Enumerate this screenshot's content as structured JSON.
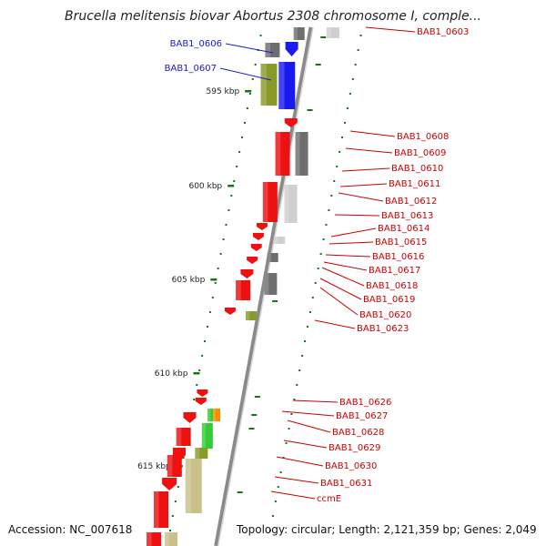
{
  "title": "Brucella melitensis biovar Abortus 2308 chromosome I, comple...",
  "footer": {
    "accession": "Accession: NC_007618",
    "info": "Topology: circular; Length: 2,121,359 bp; Genes: 2,049"
  },
  "colors": {
    "cds_red": "#ee1111",
    "cds_blue": "#1a1aee",
    "olive": "#8a9a2a",
    "khaki": "#c9c08a",
    "grey_dark": "#6e6e6e",
    "grey_light": "#cfcfcf",
    "green": "#33cc33",
    "orange": "#ff8c00",
    "label_red": "#cc0000",
    "label_blue": "#1a1acc",
    "tick_green": "#117711"
  },
  "scale_ticks": [
    "595 kbp",
    "600 kbp",
    "605 kbp",
    "610 kbp",
    "615 kbp"
  ],
  "gene_labels": [
    {
      "text": "BAB1_0603",
      "color": "red"
    },
    {
      "text": "BAB1_0606",
      "color": "blue"
    },
    {
      "text": "BAB1_0607",
      "color": "blue"
    },
    {
      "text": "BAB1_0608",
      "color": "red"
    },
    {
      "text": "BAB1_0609",
      "color": "red"
    },
    {
      "text": "BAB1_0610",
      "color": "red"
    },
    {
      "text": "BAB1_0611",
      "color": "red"
    },
    {
      "text": "BAB1_0612",
      "color": "red"
    },
    {
      "text": "BAB1_0613",
      "color": "red"
    },
    {
      "text": "BAB1_0614",
      "color": "red"
    },
    {
      "text": "BAB1_0615",
      "color": "red"
    },
    {
      "text": "BAB1_0616",
      "color": "red"
    },
    {
      "text": "BAB1_0617",
      "color": "red"
    },
    {
      "text": "BAB1_0618",
      "color": "red"
    },
    {
      "text": "BAB1_0619",
      "color": "red"
    },
    {
      "text": "BAB1_0620",
      "color": "red"
    },
    {
      "text": "BAB1_0623",
      "color": "red"
    },
    {
      "text": "BAB1_0626",
      "color": "red"
    },
    {
      "text": "BAB1_0627",
      "color": "red"
    },
    {
      "text": "BAB1_0628",
      "color": "red"
    },
    {
      "text": "BAB1_0629",
      "color": "red"
    },
    {
      "text": "BAB1_0630",
      "color": "red"
    },
    {
      "text": "BAB1_0631",
      "color": "red"
    },
    {
      "text": "ccmE",
      "color": "red"
    }
  ]
}
